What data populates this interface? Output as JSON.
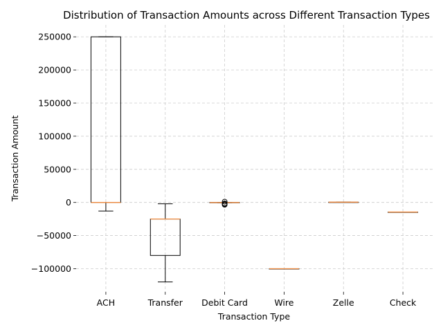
{
  "chart_data": {
    "type": "box",
    "title": "Distribution of Transaction Amounts across Different Transaction Types",
    "xlabel": "Transaction Type",
    "ylabel": "Transaction Amount",
    "ylim": [
      -135000,
      268000
    ],
    "yticks": [
      -100000,
      -50000,
      0,
      50000,
      100000,
      150000,
      200000,
      250000
    ],
    "ytick_labels": [
      "−100000",
      "−50000",
      "0",
      "50000",
      "100000",
      "150000",
      "200000",
      "250000"
    ],
    "grid": true,
    "grid_style": "dashed",
    "colors": {
      "box": "#000000",
      "median": "#f08a3e",
      "grid": "#cccccc"
    },
    "categories": [
      "ACH",
      "Transfer",
      "Debit Card",
      "Wire",
      "Zelle",
      "Check"
    ],
    "boxes": [
      {
        "label": "ACH",
        "whisker_low": -13000,
        "q1": 0,
        "median": 0,
        "q3": 250000,
        "whisker_high": 250000,
        "outliers": []
      },
      {
        "label": "Transfer",
        "whisker_low": -120000,
        "q1": -80000,
        "median": -25000,
        "q3": -25000,
        "whisker_high": -2000,
        "outliers": []
      },
      {
        "label": "Debit Card",
        "whisker_low": -500,
        "q1": -300,
        "median": -100,
        "q3": 0,
        "whisker_high": 0,
        "outliers": [
          -1500,
          -2500,
          -3500,
          1200
        ]
      },
      {
        "label": "Wire",
        "whisker_low": -100000,
        "q1": -100000,
        "median": -100000,
        "q3": -100000,
        "whisker_high": -100000,
        "outliers": []
      },
      {
        "label": "Zelle",
        "whisker_low": 400,
        "q1": 400,
        "median": 400,
        "q3": 400,
        "whisker_high": 400,
        "outliers": []
      },
      {
        "label": "Check",
        "whisker_low": -14500,
        "q1": -14500,
        "median": -14500,
        "q3": -14500,
        "whisker_high": -14500,
        "outliers": []
      }
    ]
  }
}
